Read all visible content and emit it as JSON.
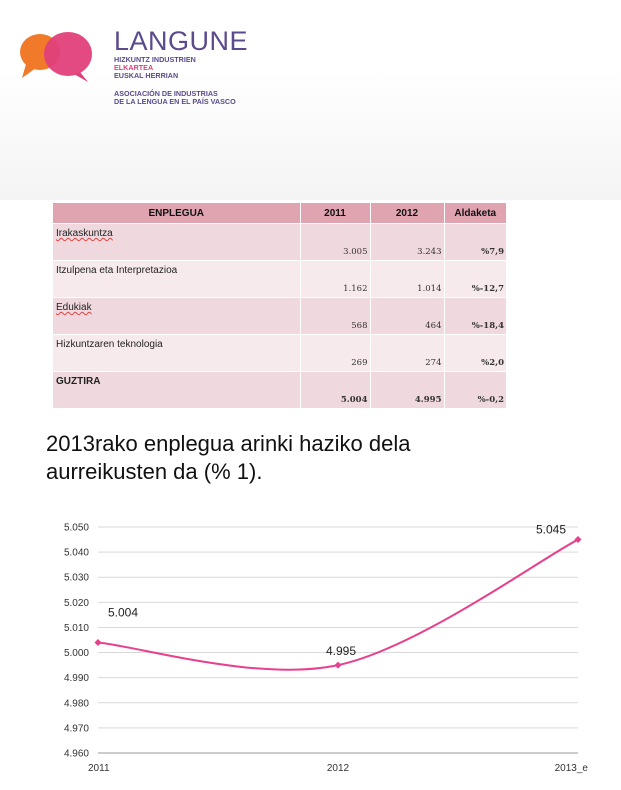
{
  "logo": {
    "name": "LANGUNE",
    "line1": "HIZKUNTZ INDUSTRIEN",
    "line2": "ELKARTEA",
    "line3": "EUSKAL HERRIAN",
    "line4": "ASOCIACIÓN DE INDUSTRIAS",
    "line5": "DE LA LENGUA EN EL PAÍS VASCO",
    "colors": {
      "orange": "#f07a2a",
      "magenta": "#e0407a",
      "purple": "#5b4a8c"
    }
  },
  "table": {
    "headers": [
      "ENPLEGUA",
      "2011",
      "2012",
      "Aldaketa"
    ],
    "rows": [
      {
        "label": "Irakaskuntza",
        "v2011": "3.005",
        "v2012": "3.243",
        "change": "%7,9"
      },
      {
        "label": "Itzulpena eta Interpretazioa",
        "v2011": "1.162",
        "v2012": "1.014",
        "change": "%-12,7"
      },
      {
        "label": "Edukiak",
        "v2011": "568",
        "v2012": "464",
        "change": "%-18,4"
      },
      {
        "label": "Hizkuntzaren teknologia",
        "v2011": "269",
        "v2012": "274",
        "change": "%2,0"
      },
      {
        "label": "GUZTIRA",
        "v2011": "5.004",
        "v2012": "4.995",
        "change": "%-0,2"
      }
    ]
  },
  "statement": {
    "line1": "2013rako enplegua arinki haziko dela",
    "line2": "aurreikusten da (% 1)."
  },
  "chart_data": {
    "type": "line",
    "categories": [
      "2011",
      "2012",
      "2013_e"
    ],
    "series": [
      {
        "values": [
          5004,
          4995,
          5045
        ],
        "color": "#e8408c"
      }
    ],
    "data_labels": [
      "5.004",
      "4.995",
      "5.045"
    ],
    "yticks": [
      "4.960",
      "4.970",
      "4.980",
      "4.990",
      "5.000",
      "5.010",
      "5.020",
      "5.030",
      "5.040",
      "5.050"
    ],
    "ylim": [
      4960,
      5050
    ],
    "grid": true,
    "smooth": true,
    "legend": "none"
  }
}
